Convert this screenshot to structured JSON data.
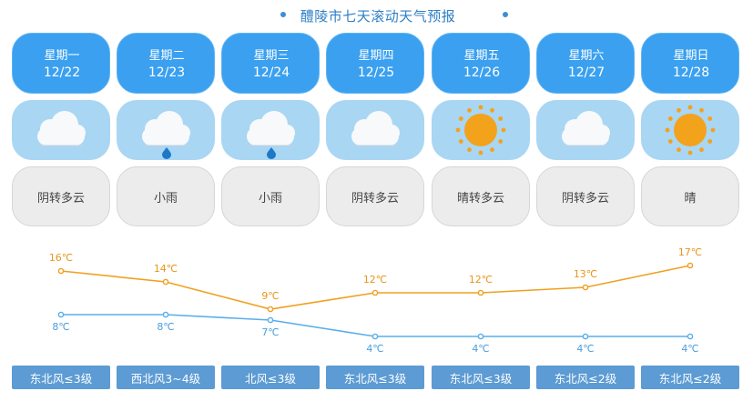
{
  "title": "醴陵市七天滚动天气预报",
  "colors": {
    "day_header": "#3aa0ef",
    "icon_bg": "#a9d6f3",
    "desc_bg": "#ececec",
    "wind_bg": "#5c9bd3",
    "high_line": "#f0a020",
    "low_line": "#5aaee8"
  },
  "days": [
    {
      "name": "星期一",
      "date": "12/22",
      "icon": "overcast-cloud-icon",
      "desc": "阴转多云",
      "wind": "东北风≤3级"
    },
    {
      "name": "星期二",
      "date": "12/23",
      "icon": "rain-cloud-icon",
      "desc": "小雨",
      "wind": "西北风3~4级"
    },
    {
      "name": "星期三",
      "date": "12/24",
      "icon": "rain-cloud-icon",
      "desc": "小雨",
      "wind": "北风≤3级"
    },
    {
      "name": "星期四",
      "date": "12/25",
      "icon": "overcast-cloud-icon",
      "desc": "阴转多云",
      "wind": "东北风≤3级"
    },
    {
      "name": "星期五",
      "date": "12/26",
      "icon": "sun-icon",
      "desc": "晴转多云",
      "wind": "东北风≤3级"
    },
    {
      "name": "星期六",
      "date": "12/27",
      "icon": "overcast-cloud-icon",
      "desc": "阴转多云",
      "wind": "东北风≤2级"
    },
    {
      "name": "星期日",
      "date": "12/28",
      "icon": "sun-icon",
      "desc": "晴",
      "wind": "东北风≤2级"
    }
  ],
  "chart_data": {
    "type": "line",
    "categories": [
      "12/22",
      "12/23",
      "12/24",
      "12/25",
      "12/26",
      "12/27",
      "12/28"
    ],
    "unit": "℃",
    "series": [
      {
        "values": [
          16,
          14,
          9,
          12,
          12,
          13,
          17
        ],
        "color": "#f0a020"
      },
      {
        "values": [
          8,
          8,
          7,
          4,
          4,
          4,
          4
        ],
        "color": "#5aaee8"
      }
    ],
    "labels": {
      "high": [
        "16℃",
        "14℃",
        "9℃",
        "12℃",
        "12℃",
        "13℃",
        "17℃"
      ],
      "low": [
        "8℃",
        "8℃",
        "7℃",
        "4℃",
        "4℃",
        "4℃",
        "4℃"
      ]
    }
  }
}
